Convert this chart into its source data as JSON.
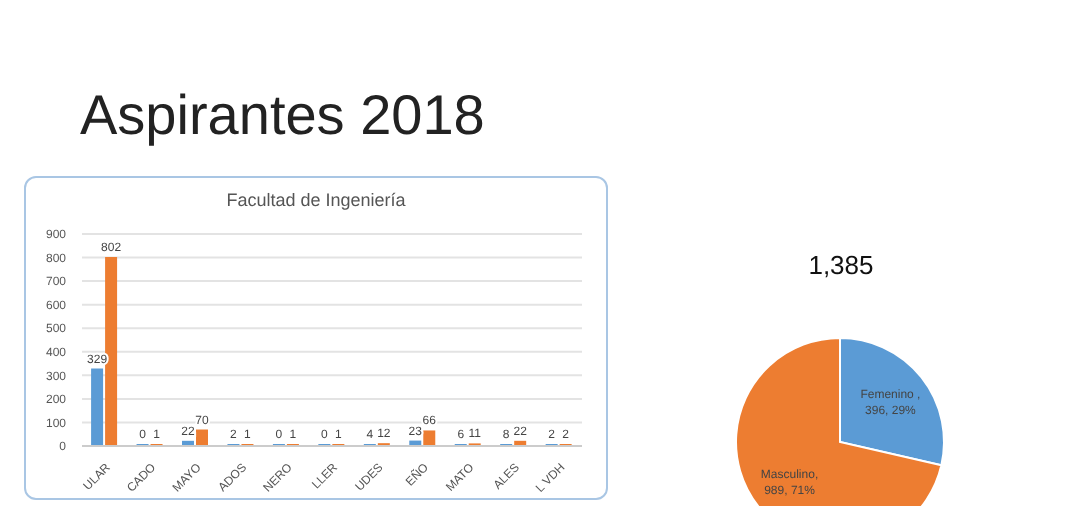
{
  "chart_data": [
    {
      "type": "bar",
      "title": "Facultad de Ingeniería",
      "annotations": [
        "Aspirantes 2018"
      ],
      "categories": [
        "ULAR",
        "CADO",
        "MAYO",
        "ADOS",
        "NERO",
        "LLER",
        "UDES",
        "EÑO",
        "MATO",
        "ALES",
        "L VDH"
      ],
      "series": [
        {
          "color": "#5b9bd5",
          "values": [
            329,
            0,
            22,
            2,
            0,
            0,
            4,
            23,
            6,
            8,
            2
          ]
        },
        {
          "color": "#ed7d31",
          "values": [
            802,
            1,
            70,
            1,
            1,
            1,
            12,
            66,
            11,
            22,
            2
          ]
        }
      ],
      "ylim": [
        0,
        900
      ],
      "yticks": [
        0,
        100,
        200,
        300,
        400,
        500,
        600,
        700,
        800,
        900
      ],
      "grid": "y",
      "data_labels": true
    },
    {
      "type": "pie",
      "title": "1,385",
      "categories": [
        "Femenino",
        "Masculino"
      ],
      "values": [
        396,
        989
      ],
      "colors": [
        "#5b9bd5",
        "#ed7d31"
      ],
      "value_labels": [
        " , 396, 29%",
        ", 989, 71%"
      ]
    }
  ]
}
